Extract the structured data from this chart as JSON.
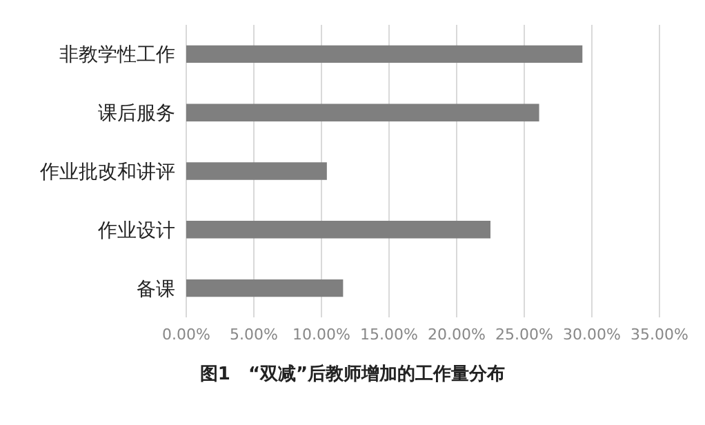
{
  "chart_data": {
    "type": "bar",
    "orientation": "horizontal",
    "title": "图1　“双减”后教师增加的工作量分布",
    "categories": [
      "非教学性工作",
      "课后服务",
      "作业批改和讲评",
      "作业设计",
      "备课"
    ],
    "values": [
      29.3,
      26.1,
      10.4,
      22.5,
      11.6
    ],
    "color": "#7f7f7f",
    "xlim": [
      0,
      35
    ],
    "xticks": [
      {
        "value": 0,
        "label": "0.00%"
      },
      {
        "value": 5,
        "label": "5.00%"
      },
      {
        "value": 10,
        "label": "10.00%"
      },
      {
        "value": 15,
        "label": "15.00%"
      },
      {
        "value": 20,
        "label": "20.00%"
      },
      {
        "value": 25,
        "label": "25.00%"
      },
      {
        "value": 30,
        "label": "30.00%"
      },
      {
        "value": 35,
        "label": "35.00%"
      }
    ],
    "grid": "x"
  }
}
